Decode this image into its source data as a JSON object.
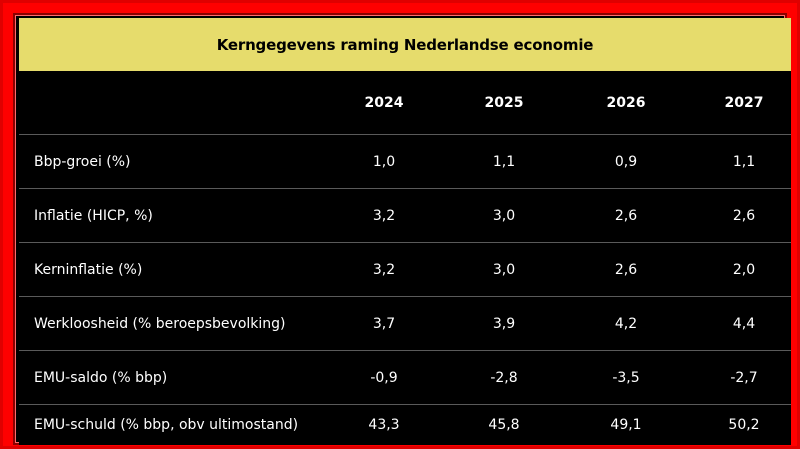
{
  "table": {
    "title": "Kerngegevens raming Nederlandse economie",
    "columns": [
      "2024",
      "2025",
      "2026",
      "2027"
    ],
    "rows": [
      {
        "label": "Bbp-groei (%)",
        "values": [
          "1,0",
          "1,1",
          "0,9",
          "1,1"
        ]
      },
      {
        "label": "Inflatie (HICP, %)",
        "values": [
          "3,2",
          "3,0",
          "2,6",
          "2,6"
        ]
      },
      {
        "label": "Kerninflatie (%)",
        "values": [
          "3,2",
          "3,0",
          "2,6",
          "2,0"
        ]
      },
      {
        "label": "Werkloosheid (% beroepsbevolking)",
        "values": [
          "3,7",
          "3,9",
          "4,2",
          "4,4"
        ]
      },
      {
        "label": "EMU-saldo (% bbp)",
        "values": [
          "-0,9",
          "-2,8",
          "-3,5",
          "-2,7"
        ]
      },
      {
        "label": "EMU-schuld (% bbp, obv ultimostand)",
        "values": [
          "43,3",
          "45,8",
          "49,1",
          "50,2"
        ]
      }
    ]
  },
  "colors": {
    "frame": "#ff0000",
    "title_bar": "#e6dc6c",
    "table_background": "#000000",
    "text": "#ffffff"
  }
}
